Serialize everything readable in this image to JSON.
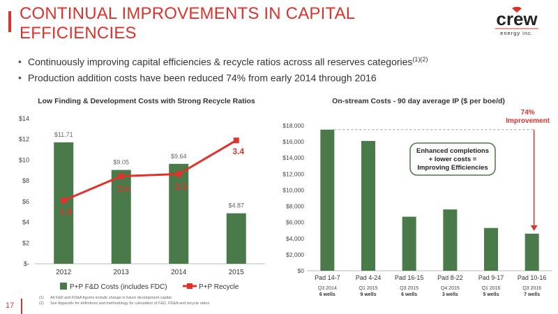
{
  "header": {
    "title": "CONTINUAL IMPROVEMENTS IN CAPITAL EFFICIENCIES",
    "logo_word": "crew",
    "logo_sub": "energy inc."
  },
  "bullets": [
    {
      "text": "Continuously improving capital efficiencies & recycle ratios across all reserves categories",
      "sup": "(1)(2)"
    },
    {
      "text": "Production addition costs have been reduced 74% from early 2014 through 2016",
      "sup": ""
    }
  ],
  "colors": {
    "accent": "#d9342b",
    "bar": "#4a7a4a",
    "line": "#e0312b"
  },
  "chart_data": [
    {
      "type": "bar",
      "title": "Low Finding & Development Costs with Strong Recycle Ratios",
      "categories": [
        "2012",
        "2013",
        "2014",
        "2015"
      ],
      "ylim": [
        0,
        14
      ],
      "yticks": [
        "$-",
        "$2",
        "$4",
        "$6",
        "$8",
        "$10",
        "$12",
        "$14"
      ],
      "series": [
        {
          "name": "P+P F&D Costs (includes FDC)",
          "kind": "bar",
          "values": [
            11.71,
            9.05,
            9.64,
            4.87
          ],
          "labels": [
            "$11.71",
            "$9.05",
            "$9.64",
            "$4.87"
          ]
        },
        {
          "name": "P+P Recycle",
          "kind": "line",
          "values": [
            1.9,
            2.4,
            2.5,
            3.4
          ],
          "labels": [
            "1.9",
            "2.4",
            "2.5",
            "3.4"
          ],
          "display_at": [
            6.1,
            8.45,
            8.65,
            11.9
          ]
        }
      ],
      "legend": "bottom"
    },
    {
      "type": "bar",
      "title": "On-stream Costs - 90 day average IP ($ per boe/d)",
      "categories": [
        "Pad 14-7",
        "Pad 4-24",
        "Pad 16-15",
        "Pad 8-22",
        "Pad 9-17",
        "Pad 10-16"
      ],
      "quarters": [
        "Q3 2014",
        "Q1 2015",
        "Q3 2015",
        "Q4 2015",
        "Q1 2016",
        "Q3 2016"
      ],
      "wells": [
        "6 wells",
        "9 wells",
        "6 wells",
        "3 wells",
        "5 wells",
        "7 wells"
      ],
      "values": [
        17500,
        16100,
        6700,
        7600,
        5300,
        4600
      ],
      "ylim": [
        0,
        18000
      ],
      "yticks": [
        "$0",
        "$2,000",
        "$4,000",
        "$6,000",
        "$8,000",
        "$10,000",
        "$12,000",
        "$14,000",
        "$16,000",
        "$18,000"
      ],
      "annotation_box": [
        "Enhanced completions",
        "+ lower costs =",
        "Improving Efficiencies"
      ],
      "improvement_label": [
        "74%",
        "Improvement"
      ]
    }
  ],
  "footnotes": [
    {
      "num": "(1)",
      "text": "All F&D and FD&A figures include change in future development capital."
    },
    {
      "num": "(2)",
      "text": "See Appendix for definitions and methodology for calculation of F&D, FD&A and recycle ratios."
    }
  ],
  "page_number": "17"
}
